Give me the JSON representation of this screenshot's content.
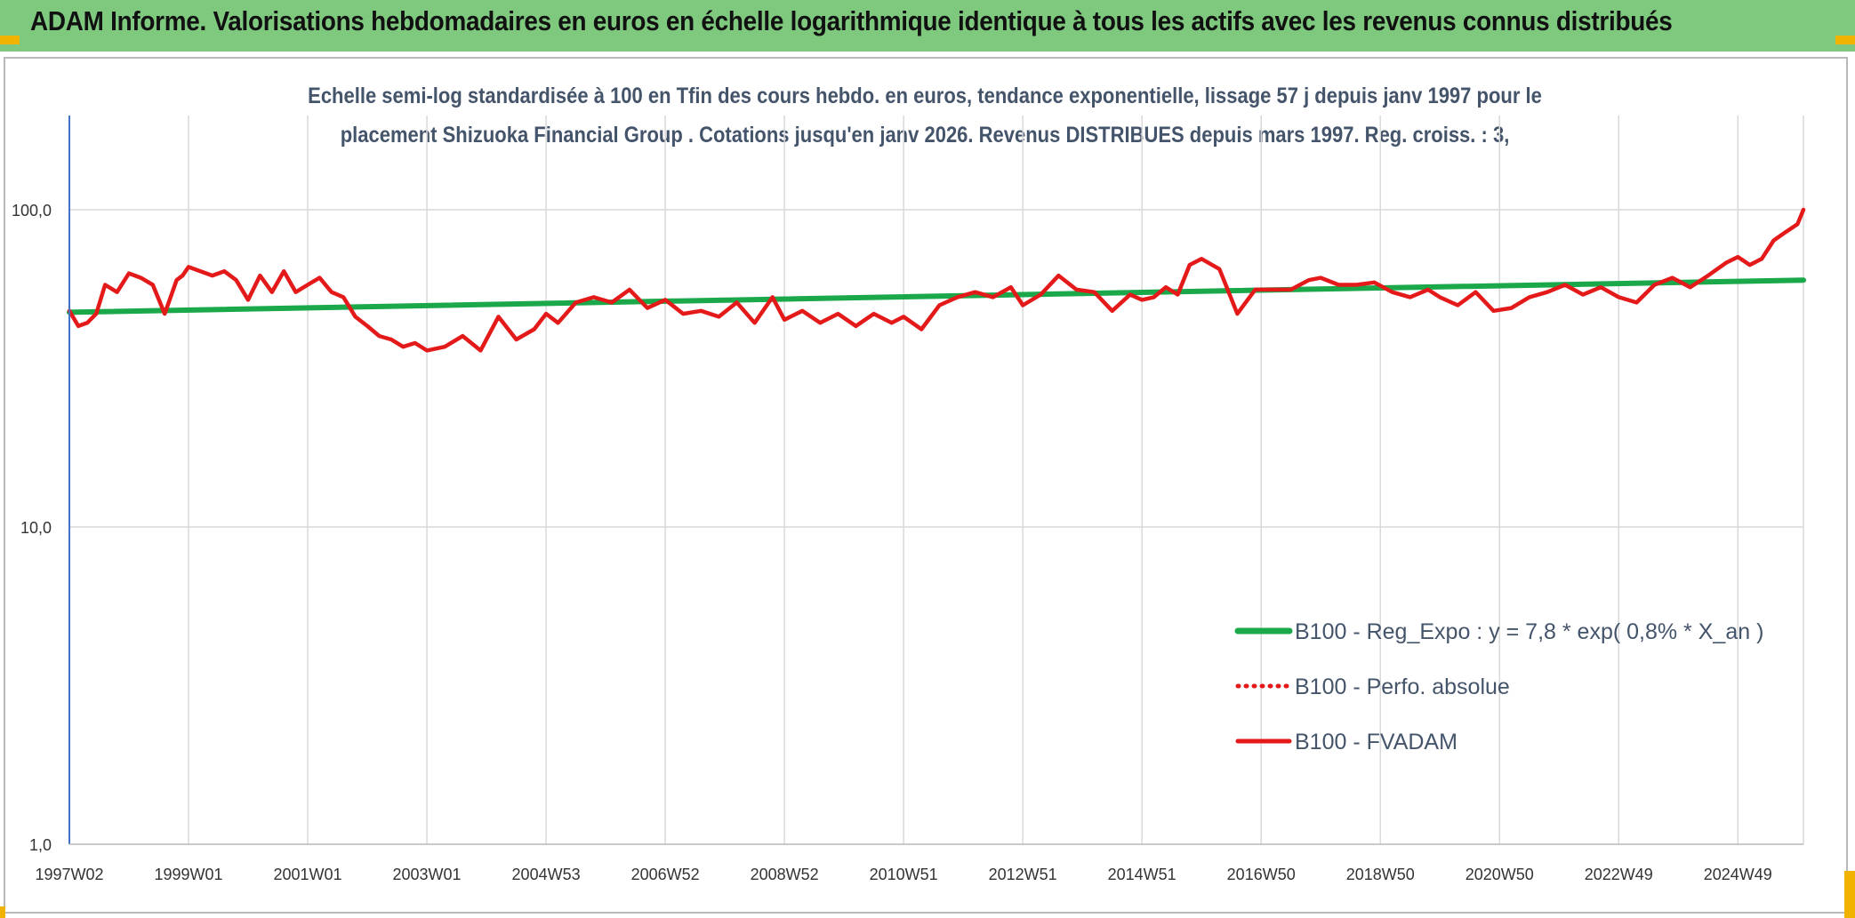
{
  "header": {
    "title": "ADAM Informe. Valorisations hebdomadaires en euros en échelle logarithmique identique à tous les actifs avec les revenus connus distribués"
  },
  "colors": {
    "header_bg": "#7fc97f",
    "trend": "#1aa84a",
    "fvadam": "#e41a1a",
    "grid": "#d9d9d9",
    "accent": "#f2b200"
  },
  "chart_data": {
    "type": "line",
    "title_line1": "Echelle semi-log standardisée à 100 en Tfin des cours hebdo. en euros, tendance exponentielle, lissage 57 j depuis janv 1997 pour le",
    "title_line2": "placement Shizuoka Financial Group . Cotations jusqu'en janv 2026. Revenus DISTRIBUES depuis mars 1997. Reg. croiss. : 3,",
    "y_scale": "log",
    "ylim": [
      1,
      200
    ],
    "y_ticks": [
      {
        "value": 100,
        "label": "100,0"
      },
      {
        "value": 10,
        "label": "10,0"
      },
      {
        "value": 1,
        "label": "1,0"
      }
    ],
    "xlim": [
      1997.0,
      2026.1
    ],
    "x_ticks": [
      {
        "pos": 1997.0,
        "label": "1997W02"
      },
      {
        "pos": 1999.0,
        "label": "1999W01"
      },
      {
        "pos": 2001.0,
        "label": "2001W01"
      },
      {
        "pos": 2003.0,
        "label": "2003W01"
      },
      {
        "pos": 2005.0,
        "label": "2004W53"
      },
      {
        "pos": 2007.0,
        "label": "2006W52"
      },
      {
        "pos": 2009.0,
        "label": "2008W52"
      },
      {
        "pos": 2011.0,
        "label": "2010W51"
      },
      {
        "pos": 2013.0,
        "label": "2012W51"
      },
      {
        "pos": 2015.0,
        "label": "2014W51"
      },
      {
        "pos": 2017.0,
        "label": "2016W50"
      },
      {
        "pos": 2019.0,
        "label": "2018W50"
      },
      {
        "pos": 2021.0,
        "label": "2020W50"
      },
      {
        "pos": 2023.0,
        "label": "2022W49"
      },
      {
        "pos": 2025.0,
        "label": "2024W49"
      }
    ],
    "series": [
      {
        "name": "B100 - Reg_Expo : y = 7,8 * exp( 0,8% *  X_an )",
        "style": "solid-green",
        "x": [
          1997.0,
          2026.1
        ],
        "values": [
          47.5,
          60.0
        ]
      },
      {
        "name": "B100 - Perfo. absolue",
        "style": "dotted-red",
        "x": [],
        "values": []
      },
      {
        "name": "B100 - FVADAM",
        "style": "solid-red",
        "x": [
          1997.0,
          1997.15,
          1997.3,
          1997.45,
          1997.6,
          1997.8,
          1998.0,
          1998.2,
          1998.4,
          1998.6,
          1998.8,
          1998.9,
          1999.0,
          1999.2,
          1999.4,
          1999.6,
          1999.8,
          2000.0,
          2000.2,
          2000.4,
          2000.6,
          2000.8,
          2001.0,
          2001.2,
          2001.4,
          2001.6,
          2001.8,
          2002.0,
          2002.2,
          2002.4,
          2002.6,
          2002.8,
          2003.0,
          2003.3,
          2003.6,
          2003.9,
          2004.2,
          2004.5,
          2004.8,
          2005.0,
          2005.2,
          2005.5,
          2005.8,
          2006.1,
          2006.4,
          2006.7,
          2007.0,
          2007.3,
          2007.6,
          2007.9,
          2008.2,
          2008.5,
          2008.8,
          2009.0,
          2009.3,
          2009.6,
          2009.9,
          2010.2,
          2010.5,
          2010.8,
          2011.0,
          2011.3,
          2011.6,
          2011.9,
          2012.2,
          2012.5,
          2012.8,
          2013.0,
          2013.3,
          2013.6,
          2013.9,
          2014.2,
          2014.5,
          2014.8,
          2015.0,
          2015.2,
          2015.4,
          2015.6,
          2015.8,
          2016.0,
          2016.3,
          2016.6,
          2016.9,
          2017.2,
          2017.5,
          2017.8,
          2018.0,
          2018.3,
          2018.6,
          2018.9,
          2019.2,
          2019.5,
          2019.8,
          2020.0,
          2020.3,
          2020.6,
          2020.9,
          2021.2,
          2021.5,
          2021.8,
          2022.1,
          2022.4,
          2022.7,
          2023.0,
          2023.3,
          2023.6,
          2023.9,
          2024.2,
          2024.5,
          2024.8,
          2025.0,
          2025.2,
          2025.4,
          2025.6,
          2025.8,
          2026.0,
          2026.1
        ],
        "values": [
          48,
          43,
          44,
          47,
          58,
          55,
          63,
          61,
          58,
          47,
          60,
          62,
          66,
          64,
          62,
          64,
          60,
          52,
          62,
          55,
          64,
          55,
          58,
          61,
          55,
          53,
          46,
          43,
          40,
          39,
          37,
          38,
          36,
          37,
          40,
          36,
          46,
          39,
          42,
          47,
          44,
          51,
          53,
          51,
          56,
          49,
          52,
          47,
          48,
          46,
          51,
          44,
          53,
          45,
          48,
          44,
          47,
          43,
          47,
          44,
          46,
          42,
          50,
          53,
          55,
          53,
          57,
          50,
          54,
          62,
          56,
          55,
          48,
          54,
          52,
          53,
          57,
          54,
          67,
          70,
          65,
          47,
          56,
          56,
          56,
          60,
          61,
          58,
          58,
          59,
          55,
          53,
          56,
          53,
          50,
          55,
          48,
          49,
          53,
          55,
          58,
          54,
          57,
          53,
          51,
          58,
          61,
          57,
          62,
          68,
          71,
          67,
          70,
          80,
          85,
          90,
          100
        ]
      }
    ],
    "legend_position": "bottom-right"
  }
}
